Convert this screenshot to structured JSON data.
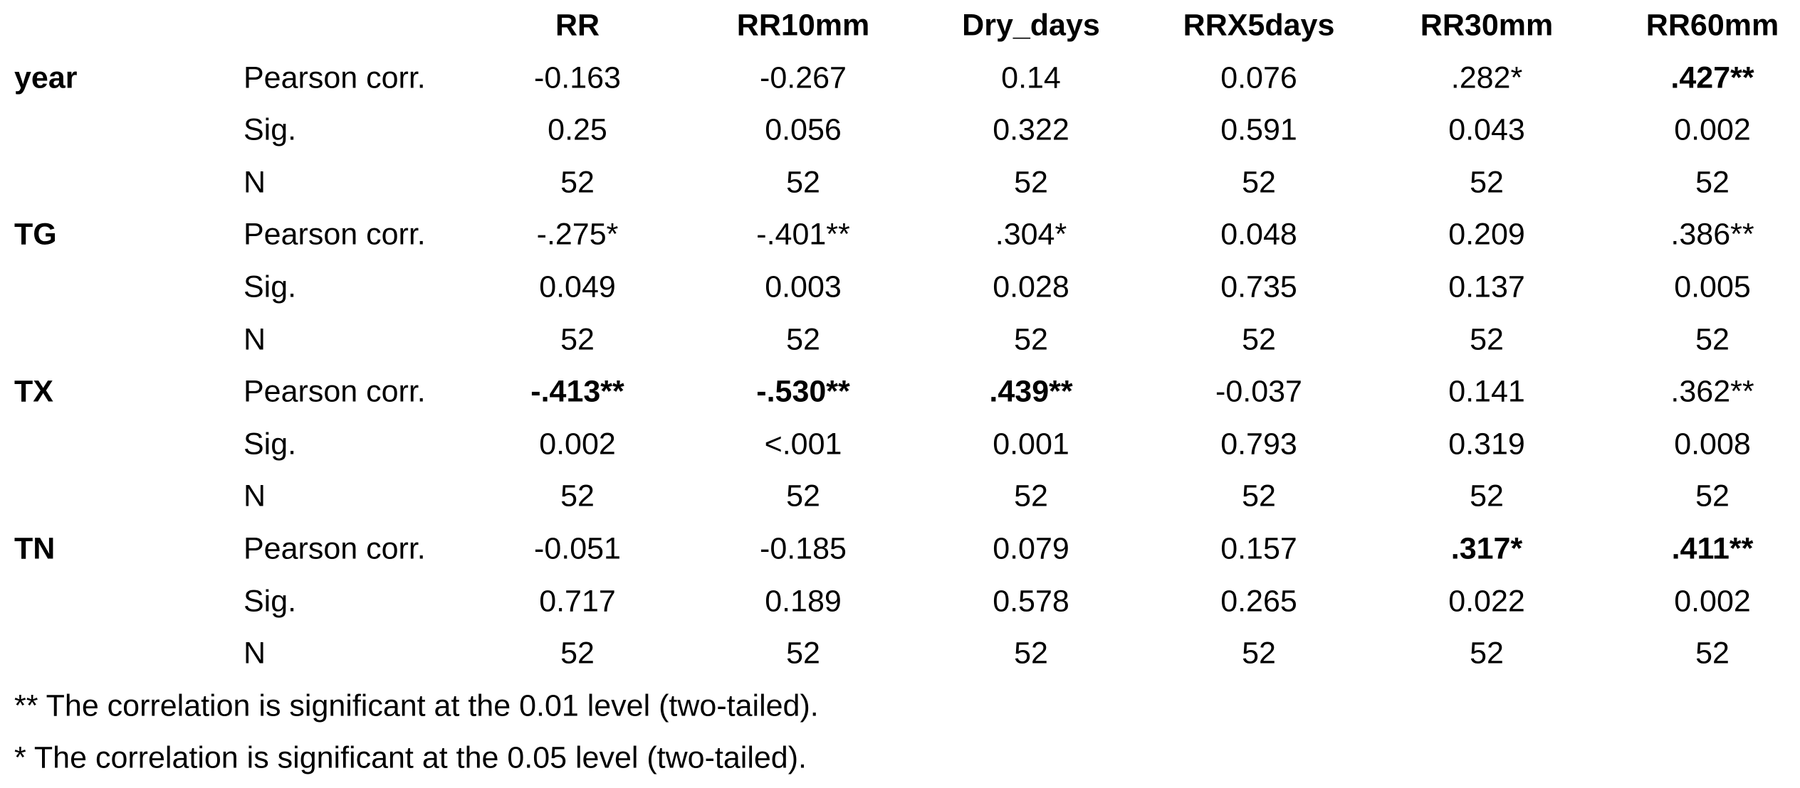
{
  "table": {
    "columns": [
      "RR",
      "RR10mm",
      "Dry_days",
      "RRX5days",
      "RR30mm",
      "RR60mm"
    ],
    "groups": [
      {
        "name": "year",
        "rows": [
          {
            "stat": "Pearson corr.",
            "cells": [
              "-0.163",
              "-0.267",
              "0.14",
              "0.076",
              ".282*",
              {
                "text": ".427**",
                "bold": true
              }
            ]
          },
          {
            "stat": "Sig.",
            "cells": [
              "0.25",
              "0.056",
              "0.322",
              "0.591",
              "0.043",
              "0.002"
            ]
          },
          {
            "stat": "N",
            "cells": [
              "52",
              "52",
              "52",
              "52",
              "52",
              "52"
            ]
          }
        ]
      },
      {
        "name": "TG",
        "rows": [
          {
            "stat": "Pearson corr.",
            "cells": [
              "-.275*",
              "-.401**",
              ".304*",
              "0.048",
              "0.209",
              ".386**"
            ]
          },
          {
            "stat": "Sig.",
            "cells": [
              "0.049",
              "0.003",
              "0.028",
              "0.735",
              "0.137",
              "0.005"
            ]
          },
          {
            "stat": "N",
            "cells": [
              "52",
              "52",
              "52",
              "52",
              "52",
              "52"
            ]
          }
        ]
      },
      {
        "name": "TX",
        "rows": [
          {
            "stat": "Pearson corr.",
            "cells": [
              {
                "text": "-.413**",
                "bold": true
              },
              {
                "text": "-.530**",
                "bold": true
              },
              {
                "text": ".439**",
                "bold": true
              },
              "-0.037",
              "0.141",
              ".362**"
            ]
          },
          {
            "stat": "Sig.",
            "cells": [
              "0.002",
              "<.001",
              "0.001",
              "0.793",
              "0.319",
              "0.008"
            ]
          },
          {
            "stat": "N",
            "cells": [
              "52",
              "52",
              "52",
              "52",
              "52",
              "52"
            ]
          }
        ]
      },
      {
        "name": "TN",
        "rows": [
          {
            "stat": "Pearson corr.",
            "cells": [
              "-0.051",
              "-0.185",
              "0.079",
              "0.157",
              {
                "text": ".317*",
                "bold": true
              },
              {
                "text": ".411**",
                "bold": true
              }
            ]
          },
          {
            "stat": "Sig.",
            "cells": [
              "0.717",
              "0.189",
              "0.578",
              "0.265",
              "0.022",
              "0.002"
            ]
          },
          {
            "stat": "N",
            "cells": [
              "52",
              "52",
              "52",
              "52",
              "52",
              "52"
            ]
          }
        ]
      }
    ]
  },
  "footnotes": [
    "** The correlation is significant at the 0.01 level (two-tailed).",
    "* The correlation is significant at the 0.05 level (two-tailed)."
  ]
}
